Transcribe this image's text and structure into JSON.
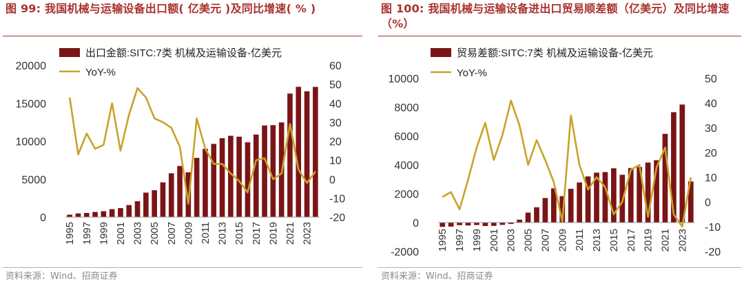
{
  "chart_data": [
    {
      "type": "bar",
      "title": "图 99: 我国机械与运输设备出口额( 亿美元 )及同比增速( % )",
      "source": "资料来源：Wind、招商证券",
      "x": [
        1995,
        1996,
        1997,
        1998,
        1999,
        2000,
        2001,
        2002,
        2003,
        2004,
        2005,
        2006,
        2007,
        2008,
        2009,
        2010,
        2011,
        2012,
        2013,
        2014,
        2015,
        2016,
        2017,
        2018,
        2019,
        2020,
        2021,
        2022,
        2023,
        2024
      ],
      "x_tick_labels": [
        "1995",
        "1997",
        "1999",
        "2001",
        "2003",
        "2005",
        "2007",
        "2009",
        "2011",
        "2013",
        "2015",
        "2017",
        "2019",
        "2021",
        "2023"
      ],
      "y_left_ticks": [
        "20000",
        "15000",
        "10000",
        "5000",
        "0"
      ],
      "y_right_ticks": [
        "60",
        "50",
        "40",
        "30",
        "20",
        "10",
        "0",
        "-10",
        "-20"
      ],
      "ylim_left": [
        0,
        20000
      ],
      "ylim_right": [
        -20,
        60
      ],
      "legend_position": "top-left",
      "series": [
        {
          "name": "出口金额:SITC:7类 机械及运输设备-亿美元",
          "kind": "bar",
          "axis": "left",
          "color": "#7b1416",
          "values": [
            310,
            480,
            540,
            670,
            770,
            1040,
            1180,
            1580,
            2090,
            3220,
            3540,
            4570,
            5770,
            6730,
            5900,
            7800,
            8990,
            9640,
            10390,
            10710,
            10590,
            9850,
            10870,
            12070,
            12110,
            12470,
            16270,
            17160,
            16570,
            17150
          ]
        },
        {
          "name": "YoY-%",
          "kind": "line",
          "axis": "right",
          "color": "#c9a227",
          "values": [
            43,
            13,
            24,
            16,
            18,
            40,
            15,
            34,
            48,
            43,
            32,
            30,
            27,
            17,
            -13,
            32,
            16,
            8,
            8,
            3,
            -1,
            -7,
            10,
            11,
            0,
            3,
            29,
            5,
            -2,
            4
          ]
        }
      ]
    },
    {
      "type": "bar",
      "title": "图 100: 我国机械与运输设备进出口贸易顺差额（亿美元）及同比增速（%）",
      "source": "资料来源：Wind、招商证券",
      "x": [
        1995,
        1996,
        1997,
        1998,
        1999,
        2000,
        2001,
        2002,
        2003,
        2004,
        2005,
        2006,
        2007,
        2008,
        2009,
        2010,
        2011,
        2012,
        2013,
        2014,
        2015,
        2016,
        2017,
        2018,
        2019,
        2020,
        2021,
        2022,
        2023,
        2024
      ],
      "x_tick_labels": [
        "1995",
        "1997",
        "1999",
        "2001",
        "2003",
        "2005",
        "2007",
        "2009",
        "2011",
        "2013",
        "2015",
        "2017",
        "2019",
        "2021",
        "2023"
      ],
      "y_left_ticks": [
        "10000",
        "8000",
        "6000",
        "4000",
        "2000",
        "0",
        "-2000"
      ],
      "y_right_ticks": [
        "50",
        "40",
        "30",
        "20",
        "10",
        "0",
        "-10",
        "-20"
      ],
      "ylim_left": [
        -2000,
        10000
      ],
      "ylim_right": [
        -20,
        50
      ],
      "legend_position": "top-left",
      "series": [
        {
          "name": "贸易差额:SITC:7类 机械及运输设备-亿美元",
          "kind": "bar",
          "axis": "left",
          "color": "#7b1416",
          "values": [
            -300,
            -280,
            -180,
            -200,
            -170,
            -240,
            -230,
            -160,
            -100,
            200,
            690,
            1060,
            1700,
            2370,
            1830,
            2340,
            2780,
            3200,
            3460,
            3500,
            3760,
            3310,
            3780,
            3850,
            4160,
            4320,
            6150,
            7650,
            8180,
            2850
          ]
        },
        {
          "name": "YoY-%",
          "kind": "line",
          "axis": "right",
          "color": "#c9a227",
          "values": [
            2,
            4,
            -3,
            9,
            22,
            32,
            17,
            27,
            41,
            31,
            15,
            25,
            17,
            8,
            -8,
            35,
            15,
            5,
            10,
            6,
            -5,
            0,
            13,
            15,
            -6,
            14,
            22,
            -5,
            -10,
            10
          ]
        }
      ]
    }
  ]
}
